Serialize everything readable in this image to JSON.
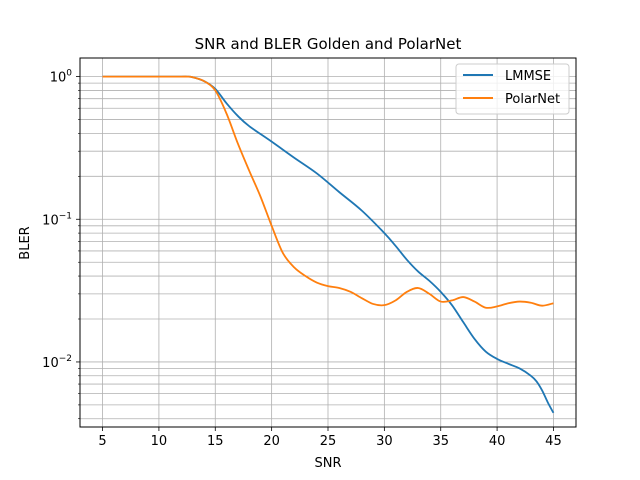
{
  "chart_data": {
    "type": "line",
    "title": "SNR and BLER Golden and PolarNet",
    "xlabel": "SNR",
    "ylabel": "BLER",
    "yscale": "log",
    "xlim": [
      3,
      47
    ],
    "ylim": [
      0.0035,
      1.35
    ],
    "xticks": [
      "5",
      "10",
      "15",
      "20",
      "25",
      "30",
      "35",
      "40",
      "45"
    ],
    "yticks": [
      {
        "base": "10",
        "exp": "0",
        "value": 1
      },
      {
        "base": "10",
        "exp": "−1",
        "value": 0.1
      },
      {
        "base": "10",
        "exp": "−2",
        "value": 0.01
      }
    ],
    "grid": true,
    "legend_position": "top-right",
    "series": [
      {
        "name": "LMMSE",
        "color": "#1f77b4",
        "x": [
          5,
          8,
          10,
          12,
          12.5,
          13,
          14,
          15,
          16,
          17,
          18,
          20,
          22,
          24,
          26,
          28,
          30,
          31,
          32,
          33,
          34,
          35,
          36,
          37,
          38,
          39,
          40,
          41,
          42,
          43,
          43.5,
          44,
          44.5,
          45
        ],
        "y": [
          1.0,
          1.0,
          1.0,
          1.0,
          1.0,
          0.99,
          0.93,
          0.82,
          0.65,
          0.53,
          0.45,
          0.35,
          0.27,
          0.21,
          0.155,
          0.115,
          0.08,
          0.065,
          0.052,
          0.043,
          0.037,
          0.031,
          0.025,
          0.019,
          0.0145,
          0.0118,
          0.0105,
          0.0097,
          0.009,
          0.008,
          0.0073,
          0.0063,
          0.0052,
          0.0044
        ]
      },
      {
        "name": "PolarNet",
        "color": "#ff7f0e",
        "x": [
          5,
          8,
          10,
          12,
          12.5,
          13,
          14,
          15,
          16,
          17,
          18,
          19,
          20,
          21,
          22,
          23,
          24,
          25,
          26,
          27,
          28,
          29,
          30,
          31,
          32,
          33,
          34,
          35,
          36,
          37,
          38,
          39,
          40,
          41,
          42,
          43,
          44,
          45
        ],
        "y": [
          1.0,
          1.0,
          1.0,
          1.0,
          1.0,
          0.99,
          0.93,
          0.8,
          0.55,
          0.34,
          0.22,
          0.145,
          0.09,
          0.058,
          0.046,
          0.04,
          0.036,
          0.034,
          0.033,
          0.031,
          0.028,
          0.0255,
          0.025,
          0.027,
          0.031,
          0.033,
          0.03,
          0.0265,
          0.027,
          0.0285,
          0.0265,
          0.024,
          0.0245,
          0.0258,
          0.0265,
          0.026,
          0.0248,
          0.0258
        ]
      }
    ]
  }
}
